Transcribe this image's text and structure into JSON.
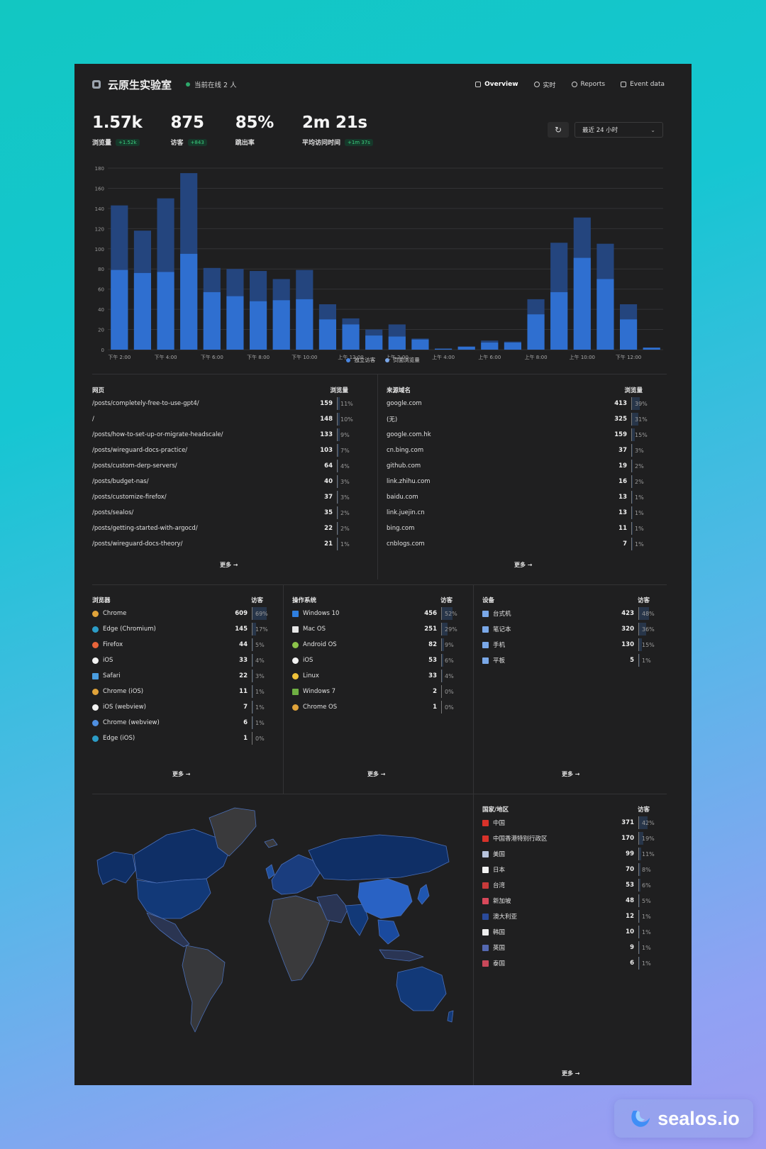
{
  "header": {
    "site_title": "云原生实验室",
    "online": "当前在线 2 人",
    "nav": [
      {
        "label": "Overview",
        "icon": "monitor-icon"
      },
      {
        "label": "实时",
        "icon": "clock-icon"
      },
      {
        "label": "Reports",
        "icon": "report-icon"
      },
      {
        "label": "Event data",
        "icon": "event-icon"
      }
    ]
  },
  "metrics": [
    {
      "value": "1.57k",
      "label": "浏览量",
      "change": "+1.52k"
    },
    {
      "value": "875",
      "label": "访客",
      "change": "+843"
    },
    {
      "value": "85%",
      "label": "跳出率",
      "change": ""
    },
    {
      "value": "2m 21s",
      "label": "平均访问时间",
      "change": "+1m 37s"
    }
  ],
  "range": {
    "refresh_icon": "↻",
    "label": "最近 24 小时",
    "chevron": "⌄"
  },
  "chart_data": {
    "type": "bar",
    "ylim": [
      0,
      180
    ],
    "yticks": [
      0,
      20,
      40,
      60,
      80,
      100,
      120,
      140,
      160,
      180
    ],
    "xtick_labels": [
      "下午 2:00",
      "下午 4:00",
      "下午 6:00",
      "下午 8:00",
      "下午 10:00",
      "上午 12:00",
      "上午 2:00",
      "上午 4:00",
      "上午 6:00",
      "上午 8:00",
      "上午 10:00",
      "下午 12:00"
    ],
    "series": [
      {
        "name": "独立访客",
        "color": "#2f6fd0",
        "values": [
          79,
          76,
          77,
          95,
          57,
          53,
          48,
          49,
          50,
          30,
          25,
          14,
          13,
          10,
          1,
          3,
          7,
          7,
          35,
          57,
          91,
          70,
          30,
          2
        ]
      },
      {
        "name": "页面浏览量",
        "color": "#24457e",
        "values": [
          143,
          118,
          150,
          175,
          81,
          80,
          78,
          70,
          79,
          45,
          31,
          20,
          25,
          11,
          1,
          3,
          9,
          8,
          50,
          106,
          131,
          105,
          45,
          2
        ]
      }
    ]
  },
  "pages": {
    "title": "网页",
    "metric": "浏览量",
    "more": "更多",
    "rows": [
      {
        "label": "/posts/completely-free-to-use-gpt4/",
        "value": "159",
        "pct": "11%"
      },
      {
        "label": "/",
        "value": "148",
        "pct": "10%"
      },
      {
        "label": "/posts/how-to-set-up-or-migrate-headscale/",
        "value": "133",
        "pct": "9%"
      },
      {
        "label": "/posts/wireguard-docs-practice/",
        "value": "103",
        "pct": "7%"
      },
      {
        "label": "/posts/custom-derp-servers/",
        "value": "64",
        "pct": "4%"
      },
      {
        "label": "/posts/budget-nas/",
        "value": "40",
        "pct": "3%"
      },
      {
        "label": "/posts/customize-firefox/",
        "value": "37",
        "pct": "3%"
      },
      {
        "label": "/posts/sealos/",
        "value": "35",
        "pct": "2%"
      },
      {
        "label": "/posts/getting-started-with-argocd/",
        "value": "22",
        "pct": "2%"
      },
      {
        "label": "/posts/wireguard-docs-theory/",
        "value": "21",
        "pct": "1%"
      }
    ]
  },
  "referrers": {
    "title": "来源域名",
    "metric": "浏览量",
    "more": "更多",
    "rows": [
      {
        "label": "google.com",
        "value": "413",
        "pct": "39%"
      },
      {
        "label": "(无)",
        "value": "325",
        "pct": "31%"
      },
      {
        "label": "google.com.hk",
        "value": "159",
        "pct": "15%"
      },
      {
        "label": "cn.bing.com",
        "value": "37",
        "pct": "3%"
      },
      {
        "label": "github.com",
        "value": "19",
        "pct": "2%"
      },
      {
        "label": "link.zhihu.com",
        "value": "16",
        "pct": "2%"
      },
      {
        "label": "baidu.com",
        "value": "13",
        "pct": "1%"
      },
      {
        "label": "link.juejin.cn",
        "value": "13",
        "pct": "1%"
      },
      {
        "label": "bing.com",
        "value": "11",
        "pct": "1%"
      },
      {
        "label": "cnblogs.com",
        "value": "7",
        "pct": "1%"
      }
    ]
  },
  "browsers": {
    "title": "浏览器",
    "metric": "访客",
    "more": "更多",
    "rows": [
      {
        "label": "Chrome",
        "value": "609",
        "pct": "69%",
        "icon": "chrome-icon",
        "color": "#e0a33a",
        "shape": "circle"
      },
      {
        "label": "Edge (Chromium)",
        "value": "145",
        "pct": "17%",
        "icon": "edge-icon",
        "color": "#2c9cc6",
        "shape": "circle"
      },
      {
        "label": "Firefox",
        "value": "44",
        "pct": "5%",
        "icon": "firefox-icon",
        "color": "#e8643a",
        "shape": "circle"
      },
      {
        "label": "iOS",
        "value": "33",
        "pct": "4%",
        "icon": "apple-icon",
        "color": "#f2f2f2",
        "shape": "circle"
      },
      {
        "label": "Safari",
        "value": "22",
        "pct": "3%",
        "icon": "safari-icon",
        "color": "#4a9de0",
        "shape": "sq"
      },
      {
        "label": "Chrome (iOS)",
        "value": "11",
        "pct": "1%",
        "icon": "chrome-icon",
        "color": "#e0a33a",
        "shape": "circle"
      },
      {
        "label": "iOS (webview)",
        "value": "7",
        "pct": "1%",
        "icon": "apple-icon",
        "color": "#f2f2f2",
        "shape": "circle"
      },
      {
        "label": "Chrome (webview)",
        "value": "6",
        "pct": "1%",
        "icon": "chromium-icon",
        "color": "#4f8fe0",
        "shape": "circle"
      },
      {
        "label": "Edge (iOS)",
        "value": "1",
        "pct": "0%",
        "icon": "edge-icon",
        "color": "#2c9cc6",
        "shape": "circle"
      }
    ]
  },
  "os": {
    "title": "操作系统",
    "metric": "访客",
    "more": "更多",
    "rows": [
      {
        "label": "Windows 10",
        "value": "456",
        "pct": "52%",
        "icon": "windows-icon",
        "color": "#2f7fe0",
        "shape": "sq"
      },
      {
        "label": "Mac OS",
        "value": "251",
        "pct": "29%",
        "icon": "finder-icon",
        "color": "#e6e6e6",
        "shape": "sq"
      },
      {
        "label": "Android OS",
        "value": "82",
        "pct": "9%",
        "icon": "android-icon",
        "color": "#8cc34a",
        "shape": "circle"
      },
      {
        "label": "iOS",
        "value": "53",
        "pct": "6%",
        "icon": "apple-icon",
        "color": "#f2f2f2",
        "shape": "circle"
      },
      {
        "label": "Linux",
        "value": "33",
        "pct": "4%",
        "icon": "linux-icon",
        "color": "#f0c23a",
        "shape": "circle"
      },
      {
        "label": "Windows 7",
        "value": "2",
        "pct": "0%",
        "icon": "windows-icon",
        "color": "#6fb043",
        "shape": "sq"
      },
      {
        "label": "Chrome OS",
        "value": "1",
        "pct": "0%",
        "icon": "chrome-icon",
        "color": "#e0a33a",
        "shape": "circle"
      }
    ]
  },
  "devices": {
    "title": "设备",
    "metric": "访客",
    "more": "更多",
    "rows": [
      {
        "label": "台式机",
        "value": "423",
        "pct": "48%",
        "icon": "desktop-icon",
        "color": "#7aa8e8",
        "shape": "sq"
      },
      {
        "label": "笔记本",
        "value": "320",
        "pct": "36%",
        "icon": "laptop-icon",
        "color": "#7aa8e8",
        "shape": "sq"
      },
      {
        "label": "手机",
        "value": "130",
        "pct": "15%",
        "icon": "phone-icon",
        "color": "#7aa8e8",
        "shape": "sq"
      },
      {
        "label": "平板",
        "value": "5",
        "pct": "1%",
        "icon": "tablet-icon",
        "color": "#7aa8e8",
        "shape": "sq"
      }
    ]
  },
  "countries": {
    "title": "国家/地区",
    "metric": "访客",
    "more": "更多",
    "rows": [
      {
        "label": "中国",
        "value": "371",
        "pct": "42%",
        "icon": "flag-cn-icon",
        "color": "#d8322a",
        "shape": "sq"
      },
      {
        "label": "中国香港特别行政区",
        "value": "170",
        "pct": "19%",
        "icon": "flag-hk-icon",
        "color": "#d8322a",
        "shape": "sq"
      },
      {
        "label": "美国",
        "value": "99",
        "pct": "11%",
        "icon": "flag-us-icon",
        "color": "#b8c4de",
        "shape": "sq"
      },
      {
        "label": "日本",
        "value": "70",
        "pct": "8%",
        "icon": "flag-jp-icon",
        "color": "#f2f2f2",
        "shape": "sq"
      },
      {
        "label": "台湾",
        "value": "53",
        "pct": "6%",
        "icon": "flag-tw-icon",
        "color": "#c83a3a",
        "shape": "sq"
      },
      {
        "label": "新加坡",
        "value": "48",
        "pct": "5%",
        "icon": "flag-sg-icon",
        "color": "#d8485a",
        "shape": "sq"
      },
      {
        "label": "澳大利亚",
        "value": "12",
        "pct": "1%",
        "icon": "flag-au-icon",
        "color": "#2a4a9a",
        "shape": "sq"
      },
      {
        "label": "韩国",
        "value": "10",
        "pct": "1%",
        "icon": "flag-kr-icon",
        "color": "#eeeeee",
        "shape": "sq"
      },
      {
        "label": "英国",
        "value": "9",
        "pct": "1%",
        "icon": "flag-gb-icon",
        "color": "#5468b0",
        "shape": "sq"
      },
      {
        "label": "泰国",
        "value": "6",
        "pct": "1%",
        "icon": "flag-th-icon",
        "color": "#c8485a",
        "shape": "sq"
      }
    ]
  },
  "brand": {
    "name": "sealos.io",
    "icon": "sealos-logo-icon"
  }
}
